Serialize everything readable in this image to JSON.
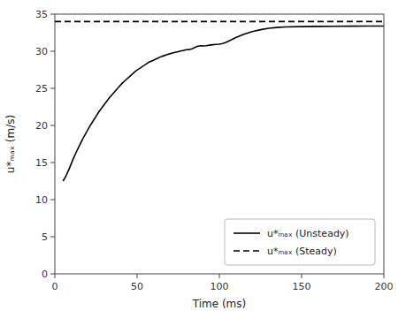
{
  "chart_data": {
    "type": "line",
    "xlabel": "Time (ms)",
    "ylabel": "u*ₘₐₓ (m/s)",
    "xlim": [
      0,
      200
    ],
    "ylim": [
      0,
      35
    ],
    "xticks": [
      0,
      50,
      100,
      150,
      200
    ],
    "yticks": [
      0,
      5,
      10,
      15,
      20,
      25,
      30,
      35
    ],
    "grid": false,
    "legend": "lower right",
    "series": [
      {
        "name": "u*ₘₐₓ (Unsteady)",
        "type": "line",
        "color": "#000000",
        "line_style": "solid",
        "x": [
          5,
          7,
          9,
          11,
          13,
          15,
          17,
          19,
          21,
          23,
          25,
          27,
          29,
          31,
          33,
          35,
          37,
          39,
          41,
          43,
          45,
          47,
          49,
          51,
          53,
          55,
          57,
          59,
          61,
          63,
          65,
          67,
          69,
          71,
          73,
          75,
          77,
          78,
          79,
          80,
          81,
          82,
          83,
          84,
          85,
          86,
          87,
          88,
          89,
          90,
          92,
          94,
          96,
          98,
          100,
          102,
          104,
          106,
          110,
          115,
          120,
          125,
          130,
          135,
          140,
          150,
          160,
          170,
          180,
          190,
          200
        ],
        "values": [
          12.5,
          13.3,
          14.3,
          15.4,
          16.4,
          17.3,
          18.2,
          19.0,
          19.8,
          20.5,
          21.2,
          21.9,
          22.5,
          23.1,
          23.7,
          24.2,
          24.7,
          25.2,
          25.7,
          26.1,
          26.5,
          26.9,
          27.3,
          27.6,
          27.9,
          28.2,
          28.5,
          28.7,
          28.9,
          29.1,
          29.3,
          29.45,
          29.6,
          29.72,
          29.84,
          29.95,
          30.05,
          30.1,
          30.15,
          30.2,
          30.22,
          30.25,
          30.3,
          30.38,
          30.5,
          30.6,
          30.68,
          30.72,
          30.75,
          30.72,
          30.75,
          30.82,
          30.88,
          30.92,
          30.95,
          31.05,
          31.2,
          31.4,
          31.85,
          32.3,
          32.65,
          32.9,
          33.1,
          33.2,
          33.27,
          33.32,
          33.35,
          33.37,
          33.38,
          33.39,
          33.4
        ]
      },
      {
        "name": "u*ₘₐₓ (Steady)",
        "type": "hline",
        "color": "#000000",
        "line_style": "dashed",
        "values": [
          34.0
        ]
      }
    ]
  }
}
